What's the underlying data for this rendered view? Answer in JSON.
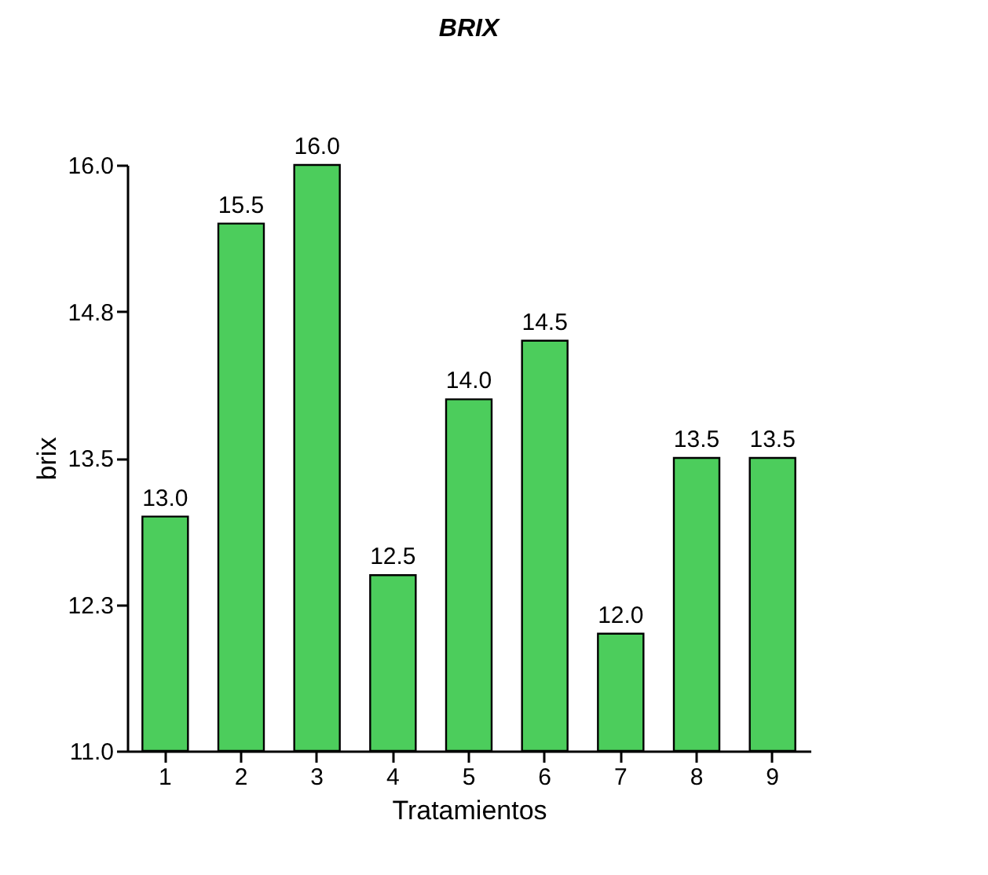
{
  "chart_data": {
    "type": "bar",
    "title": "BRIX",
    "xlabel": "Tratamientos",
    "ylabel": "brix",
    "categories": [
      "1",
      "2",
      "3",
      "4",
      "5",
      "6",
      "7",
      "8",
      "9"
    ],
    "values": [
      13.0,
      15.5,
      16.0,
      12.5,
      14.0,
      14.5,
      12.0,
      13.5,
      13.5
    ],
    "value_labels": [
      "13.0",
      "15.5",
      "16.0",
      "12.5",
      "14.0",
      "14.5",
      "12.0",
      "13.5",
      "13.5"
    ],
    "color": "#4ccd5c",
    "ylim": [
      11,
      16
    ],
    "yticks": [
      {
        "value": 11,
        "label": "11.0"
      },
      {
        "value": 12.25,
        "label": "12.3"
      },
      {
        "value": 13.5,
        "label": "13.5"
      },
      {
        "value": 14.75,
        "label": "14.8"
      },
      {
        "value": 16,
        "label": "16.0"
      }
    ],
    "grid": false
  }
}
